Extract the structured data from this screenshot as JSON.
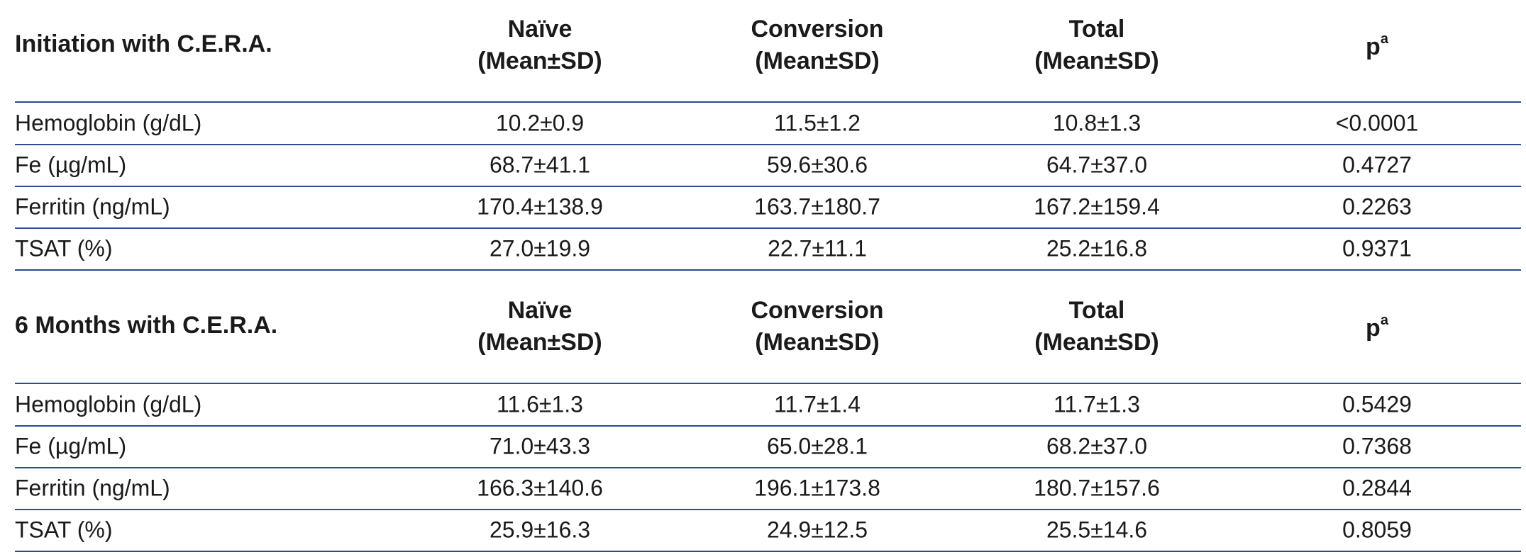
{
  "sections": [
    {
      "title": "Initiation with C.E.R.A.",
      "columns": [
        [
          "Naïve",
          "(Mean±SD)"
        ],
        [
          "Conversion",
          "(Mean±SD)"
        ],
        [
          "Total",
          "(Mean±SD)"
        ]
      ],
      "p_header": {
        "text": "p",
        "sup": "a"
      },
      "rows": [
        [
          "Hemoglobin (g/dL)",
          "10.2±0.9",
          "11.5±1.2",
          "10.8±1.3",
          "<0.0001"
        ],
        [
          "Fe (µg/mL)",
          "68.7±41.1",
          "59.6±30.6",
          "64.7±37.0",
          "0.4727"
        ],
        [
          "Ferritin (ng/mL)",
          "170.4±138.9",
          "163.7±180.7",
          "167.2±159.4",
          "0.2263"
        ],
        [
          "TSAT (%)",
          "27.0±19.9",
          "22.7±11.1",
          "25.2±16.8",
          "0.9371"
        ]
      ]
    },
    {
      "title": "6 Months with C.E.R.A.",
      "columns": [
        [
          "Naïve",
          "(Mean±SD)"
        ],
        [
          "Conversion",
          "(Mean±SD)"
        ],
        [
          "Total",
          "(Mean±SD)"
        ]
      ],
      "p_header": {
        "text": "p",
        "sup": "a"
      },
      "rows": [
        [
          "Hemoglobin (g/dL)",
          "11.6±1.3",
          "11.7±1.4",
          "11.7±1.3",
          "0.5429"
        ],
        [
          "Fe (µg/mL)",
          "71.0±43.3",
          "65.0±28.1",
          "68.2±37.0",
          "0.7368"
        ],
        [
          "Ferritin (ng/mL)",
          "166.3±140.6",
          "196.1±173.8",
          "180.7±157.6",
          "0.2844"
        ],
        [
          "TSAT (%)",
          "25.9±16.3",
          "24.9±12.5",
          "25.5±14.6",
          "0.8059"
        ]
      ]
    }
  ]
}
